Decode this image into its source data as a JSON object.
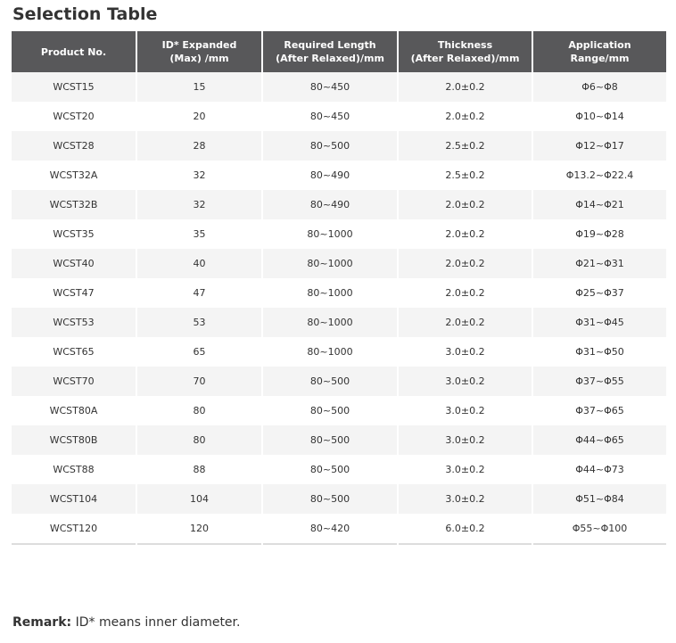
{
  "title": "Selection Table",
  "table": {
    "header": [
      [
        "Product No."
      ],
      [
        "ID* Expanded",
        "(Max) /mm"
      ],
      [
        "Required Length",
        "(After Relaxed)/mm"
      ],
      [
        "Thickness",
        "(After Relaxed)/mm"
      ],
      [
        "Application",
        "Range/mm"
      ]
    ],
    "rows": [
      [
        "WCST15",
        "15",
        "80~450",
        "2.0±0.2",
        "Φ6~Φ8"
      ],
      [
        "WCST20",
        "20",
        "80~450",
        "2.0±0.2",
        "Φ10~Φ14"
      ],
      [
        "WCST28",
        "28",
        "80~500",
        "2.5±0.2",
        "Φ12~Φ17"
      ],
      [
        "WCST32A",
        "32",
        "80~490",
        "2.5±0.2",
        "Φ13.2~Φ22.4"
      ],
      [
        "WCST32B",
        "32",
        "80~490",
        "2.0±0.2",
        "Φ14~Φ21"
      ],
      [
        "WCST35",
        "35",
        "80~1000",
        "2.0±0.2",
        "Φ19~Φ28"
      ],
      [
        "WCST40",
        "40",
        "80~1000",
        "2.0±0.2",
        "Φ21~Φ31"
      ],
      [
        "WCST47",
        "47",
        "80~1000",
        "2.0±0.2",
        "Φ25~Φ37"
      ],
      [
        "WCST53",
        "53",
        "80~1000",
        "2.0±0.2",
        "Φ31~Φ45"
      ],
      [
        "WCST65",
        "65",
        "80~1000",
        "3.0±0.2",
        "Φ31~Φ50"
      ],
      [
        "WCST70",
        "70",
        "80~500",
        "3.0±0.2",
        "Φ37~Φ55"
      ],
      [
        "WCST80A",
        "80",
        "80~500",
        "3.0±0.2",
        "Φ37~Φ65"
      ],
      [
        "WCST80B",
        "80",
        "80~500",
        "3.0±0.2",
        "Φ44~Φ65"
      ],
      [
        "WCST88",
        "88",
        "80~500",
        "3.0±0.2",
        "Φ44~Φ73"
      ],
      [
        "WCST104",
        "104",
        "80~500",
        "3.0±0.2",
        "Φ51~Φ84"
      ],
      [
        "WCST120",
        "120",
        "80~420",
        "6.0±0.2",
        "Φ55~Φ100"
      ]
    ]
  },
  "remark": {
    "label": "Remark:",
    "text": "ID* means inner diameter."
  }
}
